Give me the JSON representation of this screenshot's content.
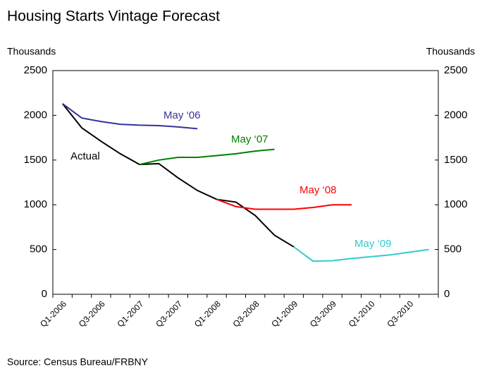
{
  "chart_data": {
    "type": "line",
    "title": "Housing Starts Vintage Forecast",
    "y_label": "Thousands",
    "y2_label": "Thousands",
    "source": "Source: Census Bureau/FRBNY",
    "categories": [
      "Q1-2006",
      null,
      "Q3-2006",
      null,
      "Q1-2007",
      null,
      "Q3-2007",
      null,
      "Q1-2008",
      null,
      "Q3-2008",
      null,
      "Q1-2009",
      null,
      "Q3-2009",
      null,
      "Q1-2010",
      null,
      "Q3-2010",
      null
    ],
    "series": [
      {
        "name": "Actual",
        "color": "#000000",
        "values": [
          2130,
          1860,
          1710,
          1570,
          1450,
          1460,
          1300,
          1160,
          1060,
          1030,
          880,
          660,
          530,
          null,
          null,
          null,
          null,
          null,
          null,
          null
        ]
      },
      {
        "name": "May ‘06",
        "color": "#333399",
        "values": [
          2130,
          1970,
          1930,
          1900,
          1890,
          1885,
          1870,
          1850,
          null,
          null,
          null,
          null,
          null,
          null,
          null,
          null,
          null,
          null,
          null,
          null
        ]
      },
      {
        "name": "May ‘07",
        "color": "#008000",
        "values": [
          null,
          null,
          null,
          null,
          1450,
          1500,
          1530,
          1530,
          1550,
          1570,
          1600,
          1620,
          null,
          null,
          null,
          null,
          null,
          null,
          null,
          null
        ]
      },
      {
        "name": "May ‘08",
        "color": "#ff0000",
        "values": [
          null,
          null,
          null,
          null,
          null,
          null,
          null,
          null,
          1060,
          980,
          950,
          950,
          950,
          970,
          1000,
          1000,
          null,
          null,
          null,
          null
        ]
      },
      {
        "name": "May ‘09",
        "color": "#33cccc",
        "values": [
          null,
          null,
          null,
          null,
          null,
          null,
          null,
          null,
          null,
          null,
          null,
          null,
          530,
          370,
          375,
          400,
          420,
          440,
          470,
          500
        ]
      }
    ],
    "ylim": [
      0,
      2500
    ],
    "yticks": [
      0,
      500,
      1000,
      1500,
      2000,
      2500
    ],
    "y2lim": [
      0,
      2500
    ],
    "y2ticks": [
      0,
      500,
      1000,
      1500,
      2000,
      2500
    ]
  }
}
